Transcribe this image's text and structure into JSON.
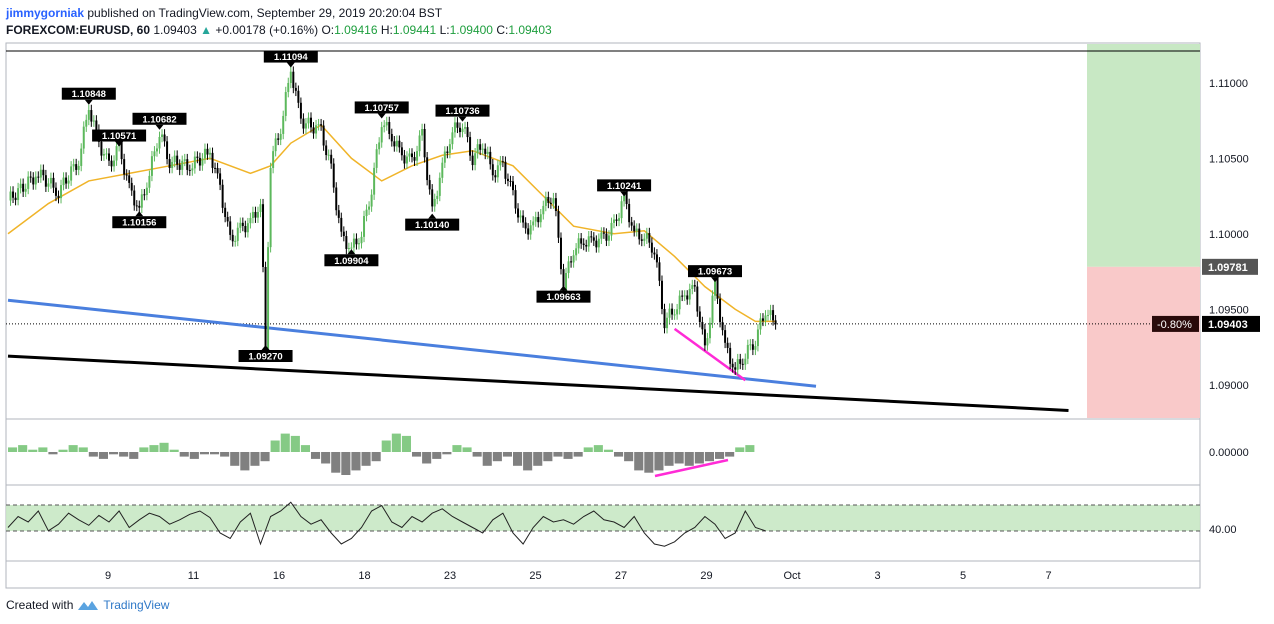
{
  "header": {
    "author": "jimmygorniak",
    "published_text": "published on TradingView.com, September 29, 2019 20:20:04 BST",
    "symbol": "FOREXCOM:EURUSD, 60",
    "last": "1.09403",
    "change": "+0.00178 (+0.16%)",
    "o_label": "O:",
    "o_value": "1.09416",
    "h_label": "H:",
    "h_value": "1.09441",
    "l_label": "L:",
    "l_value": "1.09400",
    "c_label": "C:",
    "c_value": "1.09403"
  },
  "footer": {
    "created_with": "Created with",
    "brand": "TradingView",
    "logo_icon": "tradingview-logo-icon"
  },
  "colors": {
    "up": "#5cb85c",
    "down": "#000000",
    "ma": "#f0b429",
    "trend_blue": "#4a7fde",
    "trend_black": "#000000",
    "divergence": "#ff2bd6",
    "target_zone": "#c8e8c4",
    "stop_zone": "#f9c9c9",
    "osc_up": "#5cb85c",
    "osc_down": "#555555",
    "rsi_band": "#c8e8c4"
  },
  "chart_data": {
    "type": "candlestick",
    "price_axis": {
      "ticks": [
        "1.11000",
        "1.10500",
        "1.10000",
        "1.09500",
        "1.09000"
      ],
      "ylim": [
        1.0878,
        1.1125
      ]
    },
    "current_price_label": "1.09403",
    "change_pct_label": "-0.80%",
    "zone_price_label": "1.09781",
    "date_ticks": [
      "9",
      "11",
      "16",
      "18",
      "23",
      "25",
      "27",
      "29",
      "Oct",
      "3",
      "5",
      "7"
    ],
    "price_path": [
      [
        0,
        1.1022
      ],
      [
        3,
        1.104
      ],
      [
        5,
        1.1028
      ],
      [
        7,
        1.1049
      ],
      [
        8,
        1.1084
      ],
      [
        9,
        1.106
      ],
      [
        10,
        1.1045
      ],
      [
        11,
        1.1057
      ],
      [
        12,
        1.103
      ],
      [
        13,
        1.1016
      ],
      [
        14,
        1.104
      ],
      [
        15,
        1.1068
      ],
      [
        16,
        1.1048
      ],
      [
        18,
        1.1045
      ],
      [
        20,
        1.1054
      ],
      [
        21,
        1.103
      ],
      [
        22,
        1.0995
      ],
      [
        23,
        1.1003
      ],
      [
        24,
        1.1008
      ],
      [
        25,
        1.102
      ],
      [
        25.5,
        1.0927
      ],
      [
        26,
        1.1048
      ],
      [
        27,
        1.107
      ],
      [
        28,
        1.1109
      ],
      [
        29,
        1.1075
      ],
      [
        31,
        1.1068
      ],
      [
        32,
        1.1042
      ],
      [
        33,
        1.0998
      ],
      [
        34,
        1.099
      ],
      [
        35,
        1.1
      ],
      [
        36,
        1.103
      ],
      [
        37,
        1.1075
      ],
      [
        38,
        1.1064
      ],
      [
        39,
        1.1052
      ],
      [
        40,
        1.1048
      ],
      [
        41,
        1.1065
      ],
      [
        42,
        1.1014
      ],
      [
        43,
        1.1045
      ],
      [
        44,
        1.1068
      ],
      [
        45,
        1.1073
      ],
      [
        46,
        1.105
      ],
      [
        47,
        1.106
      ],
      [
        48,
        1.104
      ],
      [
        49,
        1.1046
      ],
      [
        50,
        1.1025
      ],
      [
        51,
        1.1003
      ],
      [
        52,
        1.1005
      ],
      [
        53,
        1.1018
      ],
      [
        54,
        1.1026
      ],
      [
        55,
        1.0966
      ],
      [
        56,
        1.099
      ],
      [
        57,
        1.0995
      ],
      [
        58,
        1.0995
      ],
      [
        59,
        1.0997
      ],
      [
        60,
        1.1005
      ],
      [
        61,
        1.1024
      ],
      [
        62,
        1.1
      ],
      [
        63,
        1.0998
      ],
      [
        64,
        1.099
      ],
      [
        65,
        1.0942
      ],
      [
        66,
        1.095
      ],
      [
        67,
        1.096
      ],
      [
        68,
        1.0963
      ],
      [
        69,
        1.0922
      ],
      [
        70,
        1.0967
      ],
      [
        71,
        1.0925
      ],
      [
        72,
        1.091
      ],
      [
        73,
        1.092
      ],
      [
        74,
        1.093
      ],
      [
        75,
        1.095
      ],
      [
        76,
        1.094
      ]
    ],
    "ma_path": [
      [
        0,
        1.1
      ],
      [
        4,
        1.102
      ],
      [
        8,
        1.1035
      ],
      [
        12,
        1.104
      ],
      [
        16,
        1.1045
      ],
      [
        20,
        1.105
      ],
      [
        24,
        1.104
      ],
      [
        26,
        1.1045
      ],
      [
        28,
        1.106
      ],
      [
        31,
        1.1072
      ],
      [
        34,
        1.105
      ],
      [
        37,
        1.1035
      ],
      [
        40,
        1.1045
      ],
      [
        43,
        1.1052
      ],
      [
        46,
        1.1055
      ],
      [
        50,
        1.1045
      ],
      [
        53,
        1.1025
      ],
      [
        56,
        1.1005
      ],
      [
        60,
        1.1
      ],
      [
        63,
        1.1002
      ],
      [
        66,
        1.0985
      ],
      [
        69,
        1.0965
      ],
      [
        72,
        1.095
      ],
      [
        74,
        1.0942
      ],
      [
        76,
        1.0942
      ]
    ],
    "pivot_labels": [
      {
        "text": "1.10848",
        "kind": "high",
        "x": 8,
        "price": 1.10848
      },
      {
        "text": "1.10571",
        "kind": "high",
        "x": 11,
        "price": 1.10571
      },
      {
        "text": "1.10682",
        "kind": "high",
        "x": 15,
        "price": 1.10682
      },
      {
        "text": "1.10156",
        "kind": "low",
        "x": 13,
        "price": 1.10156
      },
      {
        "text": "1.11094",
        "kind": "high",
        "x": 28,
        "price": 1.11094
      },
      {
        "text": "1.09270",
        "kind": "low",
        "x": 25.5,
        "price": 1.0927
      },
      {
        "text": "1.10757",
        "kind": "high",
        "x": 37,
        "price": 1.10757
      },
      {
        "text": "1.09904",
        "kind": "low",
        "x": 34,
        "price": 1.09904
      },
      {
        "text": "1.10736",
        "kind": "high",
        "x": 45,
        "price": 1.10736
      },
      {
        "text": "1.10140",
        "kind": "low",
        "x": 42,
        "price": 1.1014
      },
      {
        "text": "1.10241",
        "kind": "high",
        "x": 61,
        "price": 1.10241
      },
      {
        "text": "1.09663",
        "kind": "low",
        "x": 55,
        "price": 1.09663
      },
      {
        "text": "1.09673",
        "kind": "high",
        "x": 70,
        "price": 1.09673
      }
    ],
    "trendlines": [
      {
        "name": "blue",
        "from": [
          0,
          1.0956
        ],
        "to": [
          80,
          1.0899
        ]
      },
      {
        "name": "black",
        "from": [
          0,
          1.0919
        ],
        "to": [
          105,
          1.0883
        ]
      },
      {
        "name": "divergence-price",
        "from": [
          66,
          1.0937
        ],
        "to": [
          73,
          1.0903
        ]
      }
    ],
    "horizontal_line": 1.1121,
    "oscillator": {
      "axis_tick": "0.00000",
      "values": [
        2,
        3,
        1,
        2,
        -1,
        1,
        3,
        2,
        -2,
        -3,
        -1,
        -2,
        -3,
        2,
        3,
        4,
        1,
        -2,
        -3,
        -1,
        -1,
        -2,
        -6,
        -8,
        -6,
        -4,
        5,
        8,
        7,
        3,
        -3,
        -5,
        -9,
        -10,
        -8,
        -6,
        -4,
        5,
        8,
        7,
        -2,
        -5,
        -3,
        -1,
        3,
        2,
        -2,
        -6,
        -4,
        -2,
        -6,
        -8,
        -6,
        -4,
        -2,
        -3,
        -2,
        2,
        3,
        1,
        -2,
        -4,
        -8,
        -9,
        -8,
        -6,
        -5,
        -6,
        -5,
        -4,
        -3,
        -2,
        2,
        3
      ]
    },
    "rsi": {
      "axis_tick": "40.00",
      "values": [
        45,
        55,
        50,
        60,
        42,
        48,
        58,
        52,
        47,
        56,
        50,
        60,
        45,
        52,
        58,
        55,
        48,
        52,
        57,
        60,
        54,
        40,
        35,
        50,
        58,
        30,
        55,
        60,
        68,
        55,
        48,
        52,
        40,
        30,
        35,
        45,
        60,
        65,
        50,
        45,
        55,
        50,
        58,
        62,
        55,
        50,
        45,
        40,
        52,
        58,
        40,
        30,
        45,
        55,
        50,
        52,
        48,
        55,
        60,
        52,
        50,
        45,
        55,
        40,
        30,
        28,
        32,
        40,
        45,
        55,
        48,
        35,
        40,
        60,
        45,
        42
      ]
    }
  }
}
